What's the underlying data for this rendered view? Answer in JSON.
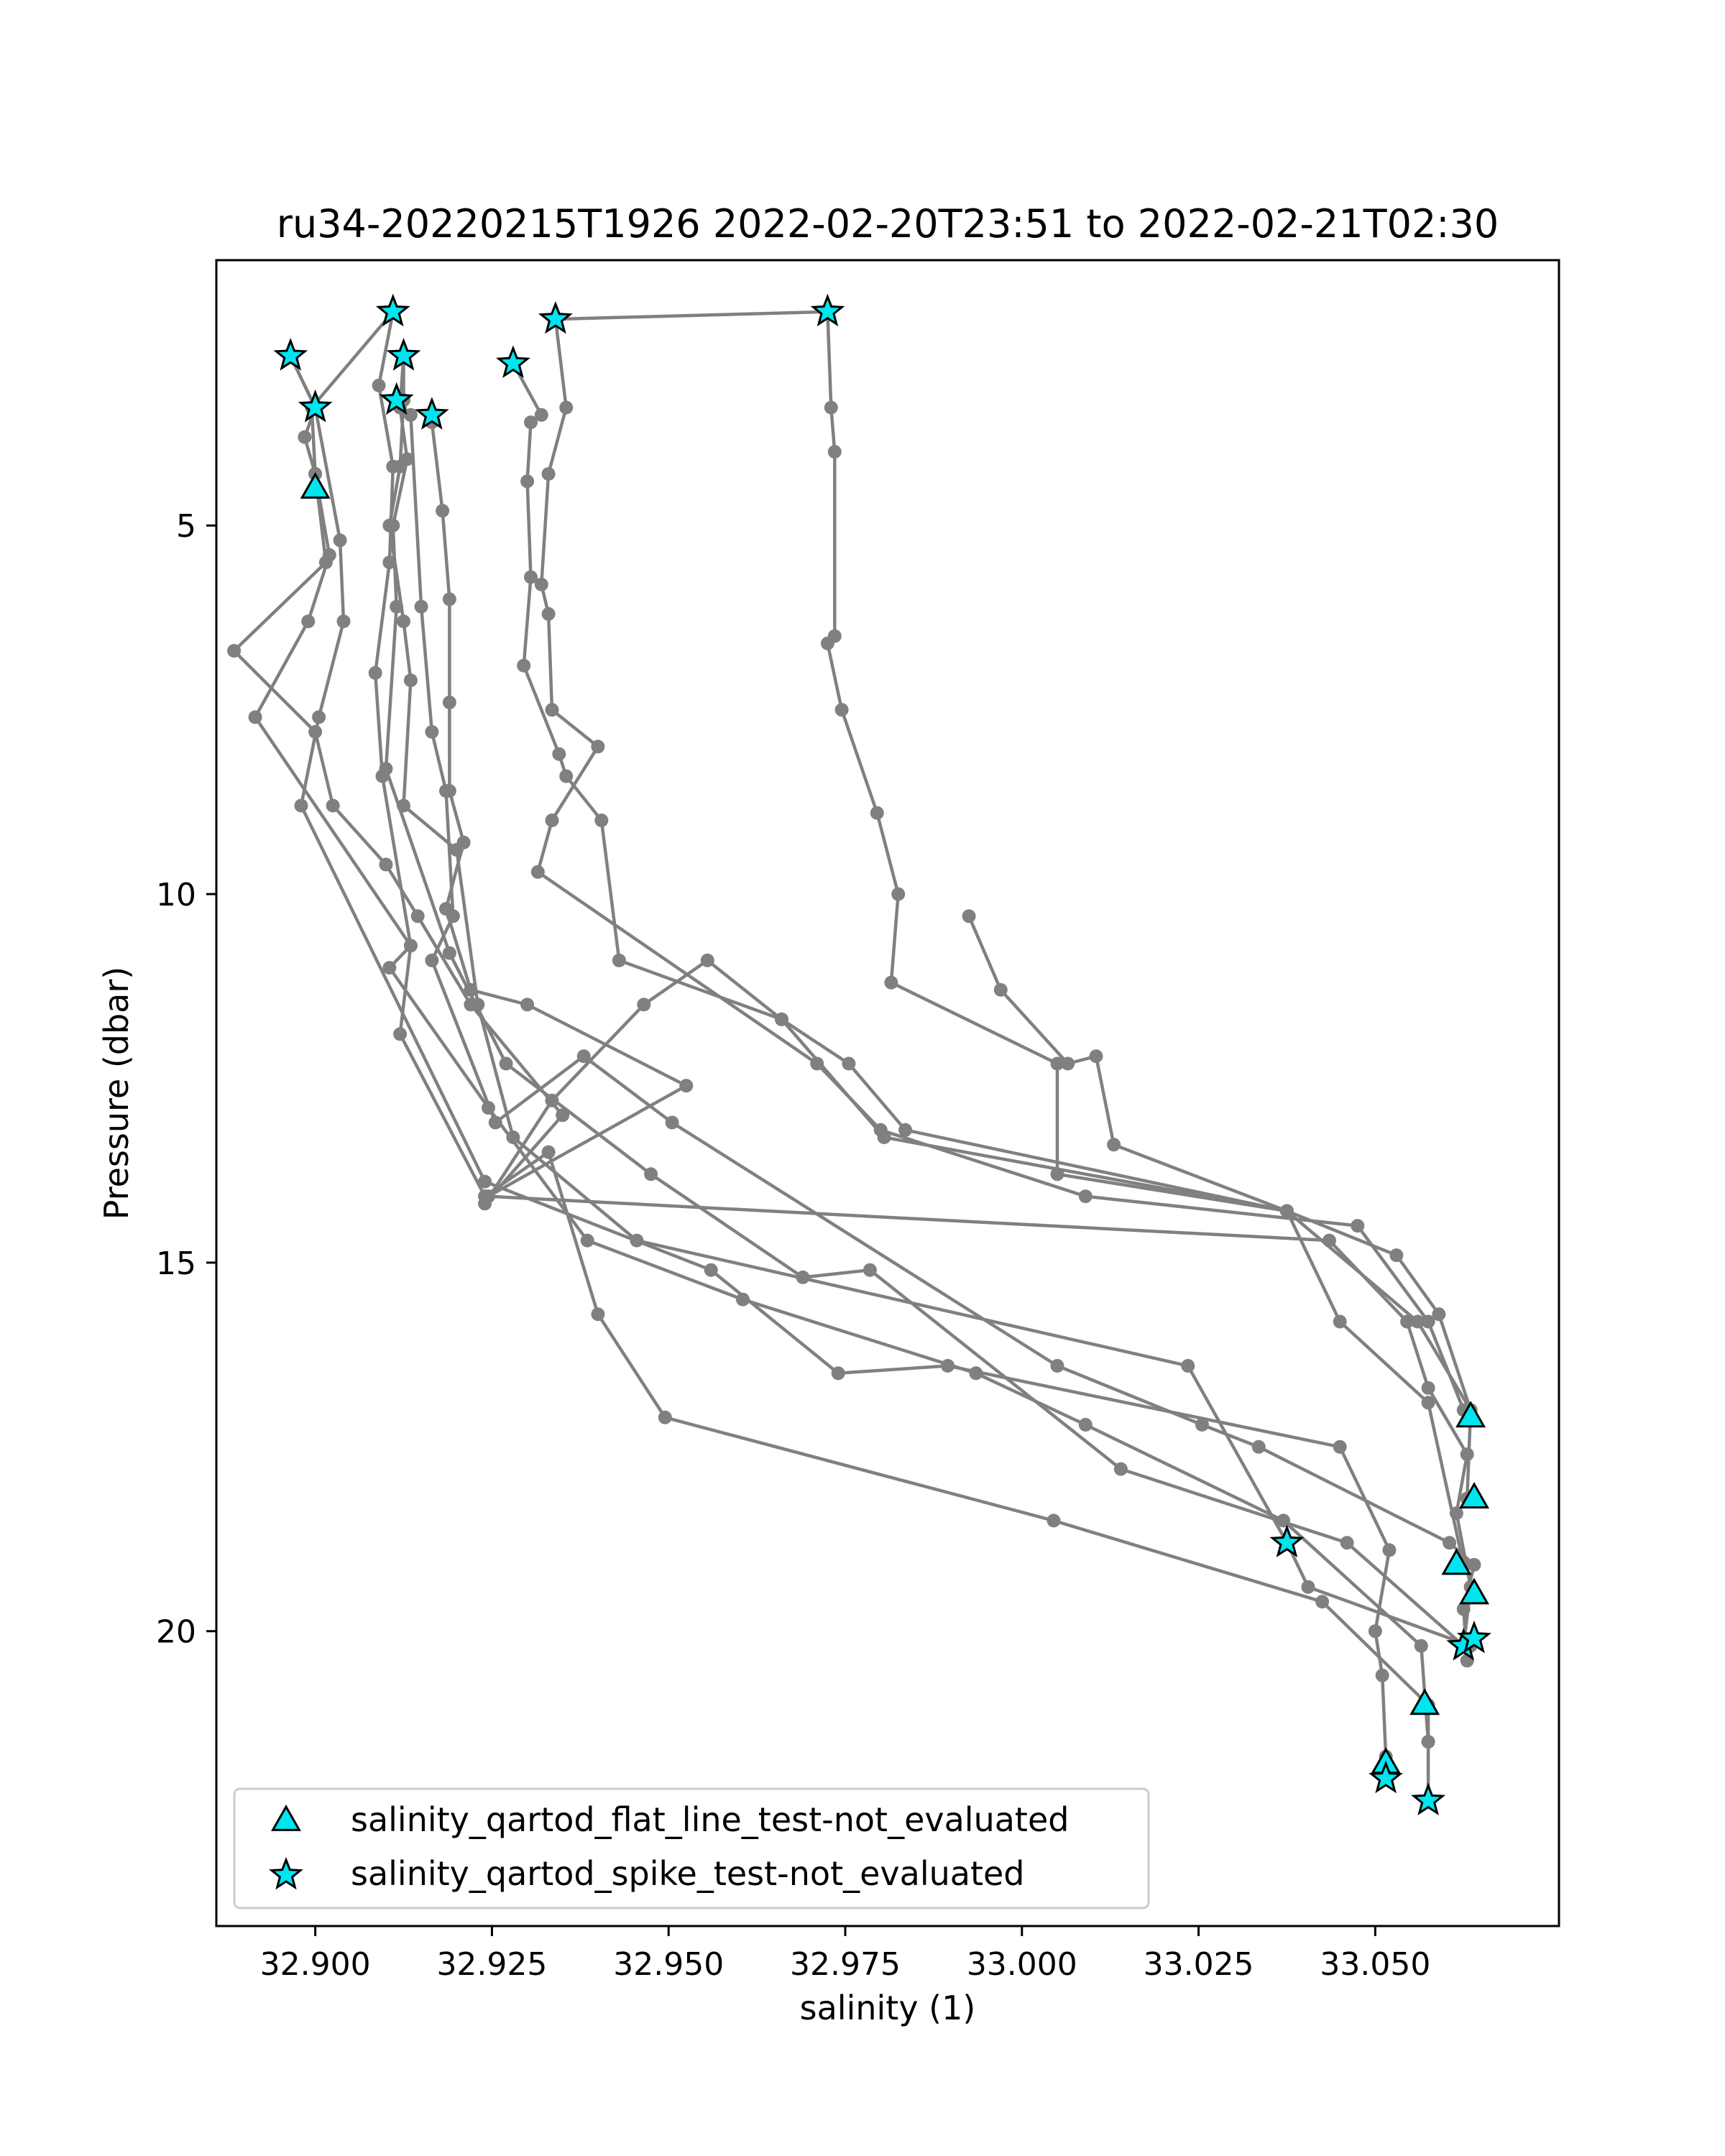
{
  "chart_data": {
    "type": "scatter",
    "title": "ru34-20220215T1926 2022-02-20T23:51 to 2022-02-21T02:30",
    "xlabel": "salinity (1)",
    "ylabel": "Pressure (dbar)",
    "xlim": [
      32.886,
      33.076
    ],
    "ylim": [
      24.0,
      1.4
    ],
    "y_inverted": true,
    "x_ticks": [
      "32.900",
      "32.925",
      "32.950",
      "32.975",
      "33.000",
      "33.025",
      "33.050"
    ],
    "x_tick_values": [
      32.9,
      32.925,
      32.95,
      32.975,
      33.0,
      33.025,
      33.05
    ],
    "y_ticks": [
      "5",
      "10",
      "15",
      "20"
    ],
    "y_tick_values": [
      5,
      10,
      15,
      20
    ],
    "grid": false,
    "legend_position": "lower-left",
    "colors": {
      "profile": "#808080",
      "marker_fill": "#00e5ee",
      "marker_edge": "#000000"
    },
    "series": [
      {
        "points": [
          [
            32.8965,
            2.7
          ],
          [
            32.9,
            3.4
          ],
          [
            32.8985,
            3.8
          ],
          [
            32.9,
            4.3
          ],
          [
            32.9015,
            5.5
          ],
          [
            32.8885,
            6.7
          ],
          [
            32.9,
            7.8
          ],
          [
            32.9025,
            8.8
          ],
          [
            32.91,
            9.6
          ],
          [
            32.9145,
            10.3
          ],
          [
            32.922,
            11.5
          ],
          [
            32.935,
            13.0
          ],
          [
            32.924,
            14.2
          ],
          [
            32.9335,
            12.8
          ],
          [
            32.9465,
            11.5
          ],
          [
            32.9555,
            10.9
          ],
          [
            32.966,
            11.7
          ],
          [
            32.9755,
            12.3
          ],
          [
            32.9835,
            13.2
          ],
          [
            33.0375,
            14.3
          ],
          [
            33.053,
            14.9
          ],
          [
            33.059,
            15.7
          ],
          [
            33.0635,
            17.0
          ],
          [
            33.063,
            18.2
          ]
        ]
      },
      {
        "points": [
          [
            32.8965,
            2.7
          ],
          [
            32.9,
            3.4
          ],
          [
            32.9035,
            5.2
          ],
          [
            32.904,
            6.3
          ],
          [
            32.9005,
            7.6
          ],
          [
            32.898,
            8.8
          ],
          [
            32.924,
            13.9
          ],
          [
            32.956,
            15.1
          ],
          [
            32.974,
            16.5
          ],
          [
            32.9895,
            16.4
          ],
          [
            33.045,
            17.5
          ],
          [
            33.052,
            18.9
          ],
          [
            33.05,
            20.0
          ],
          [
            33.051,
            20.6
          ],
          [
            33.0515,
            21.7
          ],
          [
            33.0515,
            22.0
          ]
        ]
      },
      {
        "points": [
          [
            32.911,
            2.1
          ],
          [
            32.8995,
            3.4
          ],
          [
            32.9,
            4.3
          ],
          [
            32.902,
            5.4
          ],
          [
            32.899,
            6.3
          ],
          [
            32.8915,
            7.6
          ],
          [
            32.9135,
            10.7
          ],
          [
            32.912,
            11.9
          ],
          [
            32.924,
            14.1
          ],
          [
            32.933,
            13.5
          ],
          [
            32.94,
            15.7
          ],
          [
            32.9495,
            17.1
          ],
          [
            33.0045,
            18.5
          ],
          [
            33.0425,
            19.6
          ],
          [
            33.0575,
            21.0
          ],
          [
            33.0575,
            21.5
          ],
          [
            33.0575,
            22.3
          ]
        ]
      },
      {
        "points": [
          [
            32.911,
            2.1
          ],
          [
            32.909,
            3.1
          ],
          [
            32.911,
            4.2
          ],
          [
            32.9105,
            5.5
          ],
          [
            32.9085,
            7.0
          ],
          [
            32.9095,
            8.4
          ],
          [
            32.9135,
            10.7
          ],
          [
            32.9105,
            11.0
          ],
          [
            32.9245,
            12.9
          ],
          [
            32.9385,
            14.7
          ],
          [
            32.9605,
            15.5
          ],
          [
            32.9935,
            16.5
          ],
          [
            33.009,
            17.2
          ],
          [
            33.037,
            18.5
          ],
          [
            33.0565,
            20.2
          ],
          [
            33.0575,
            21.5
          ]
        ]
      },
      {
        "points": [
          [
            32.9125,
            2.7
          ],
          [
            32.912,
            3.4
          ],
          [
            32.913,
            4.1
          ],
          [
            32.911,
            5.0
          ],
          [
            32.9115,
            6.1
          ],
          [
            32.91,
            8.3
          ],
          [
            32.919,
            10.8
          ],
          [
            32.927,
            12.3
          ],
          [
            32.9475,
            13.8
          ],
          [
            32.969,
            15.2
          ],
          [
            32.9785,
            15.1
          ],
          [
            33.014,
            17.8
          ],
          [
            33.046,
            18.8
          ],
          [
            33.0625,
            20.2
          ]
        ]
      },
      {
        "points": [
          [
            32.9125,
            2.7
          ],
          [
            32.9125,
            3.3
          ],
          [
            32.912,
            4.2
          ],
          [
            32.9105,
            5.0
          ],
          [
            32.9125,
            6.3
          ],
          [
            32.9135,
            7.1
          ],
          [
            32.9125,
            8.8
          ],
          [
            32.92,
            9.4
          ],
          [
            32.923,
            11.5
          ],
          [
            32.928,
            13.3
          ],
          [
            32.9455,
            14.7
          ],
          [
            33.0235,
            16.4
          ],
          [
            33.0375,
            18.8
          ],
          [
            33.0405,
            19.4
          ],
          [
            33.0635,
            20.2
          ]
        ]
      },
      {
        "points": [
          [
            32.9115,
            3.3
          ],
          [
            32.9135,
            3.5
          ],
          [
            32.915,
            6.1
          ],
          [
            32.9165,
            7.8
          ],
          [
            32.9185,
            8.6
          ],
          [
            32.9195,
            10.3
          ],
          [
            32.9165,
            10.9
          ],
          [
            32.9255,
            13.1
          ],
          [
            32.938,
            12.2
          ],
          [
            32.9505,
            13.1
          ],
          [
            33.005,
            16.4
          ],
          [
            33.0255,
            17.2
          ],
          [
            33.0335,
            17.5
          ],
          [
            33.0605,
            18.8
          ],
          [
            33.064,
            19.1
          ],
          [
            33.0625,
            19.7
          ],
          [
            33.063,
            20.4
          ]
        ]
      },
      {
        "points": [
          [
            32.9165,
            3.6
          ],
          [
            32.918,
            4.8
          ],
          [
            32.919,
            6.0
          ],
          [
            32.919,
            7.4
          ],
          [
            32.919,
            8.6
          ],
          [
            32.921,
            9.3
          ],
          [
            32.9185,
            10.2
          ],
          [
            32.922,
            11.3
          ],
          [
            32.93,
            11.5
          ],
          [
            32.9525,
            12.6
          ],
          [
            32.9245,
            14.1
          ],
          [
            33.0435,
            14.7
          ],
          [
            33.0545,
            15.8
          ],
          [
            33.0575,
            16.7
          ],
          [
            33.063,
            17.6
          ],
          [
            33.0615,
            18.4
          ],
          [
            33.0635,
            19.4
          ],
          [
            33.0625,
            20.2
          ]
        ]
      },
      {
        "points": [
          [
            32.928,
            2.8
          ],
          [
            32.932,
            3.5
          ],
          [
            32.9305,
            3.6
          ],
          [
            32.93,
            4.4
          ],
          [
            32.9305,
            5.7
          ],
          [
            32.9295,
            6.9
          ],
          [
            32.9345,
            8.1
          ],
          [
            32.9355,
            8.4
          ],
          [
            32.9405,
            9.0
          ],
          [
            32.943,
            10.9
          ],
          [
            32.966,
            11.7
          ],
          [
            32.9805,
            13.3
          ],
          [
            33.0375,
            14.3
          ],
          [
            33.045,
            15.8
          ],
          [
            33.0575,
            16.9
          ],
          [
            33.0625,
            19.1
          ]
        ]
      },
      {
        "points": [
          [
            32.934,
            2.2
          ],
          [
            32.9355,
            3.4
          ],
          [
            32.933,
            4.3
          ],
          [
            32.932,
            5.8
          ],
          [
            32.933,
            6.2
          ],
          [
            32.9335,
            7.5
          ],
          [
            32.94,
            8.0
          ],
          [
            32.9335,
            9.0
          ],
          [
            32.9315,
            9.7
          ],
          [
            32.971,
            12.3
          ],
          [
            32.98,
            13.2
          ],
          [
            33.009,
            14.1
          ],
          [
            33.0475,
            14.5
          ],
          [
            33.0575,
            15.8
          ],
          [
            33.0625,
            17.0
          ]
        ]
      },
      {
        "points": [
          [
            32.934,
            2.2
          ],
          [
            32.9725,
            2.1
          ],
          [
            32.973,
            3.4
          ],
          [
            32.9735,
            4.0
          ],
          [
            32.9735,
            6.5
          ],
          [
            32.9725,
            6.6
          ],
          [
            32.9745,
            7.5
          ],
          [
            32.9795,
            8.9
          ],
          [
            32.9825,
            10.0
          ],
          [
            32.9815,
            11.2
          ],
          [
            33.005,
            12.3
          ],
          [
            33.005,
            13.8
          ],
          [
            33.0375,
            14.3
          ],
          [
            33.056,
            15.8
          ],
          [
            33.0635,
            17.0
          ]
        ]
      },
      {
        "points": [
          [
            32.9925,
            10.3
          ],
          [
            32.997,
            11.3
          ],
          [
            33.0065,
            12.3
          ],
          [
            33.0105,
            12.2
          ],
          [
            33.013,
            13.4
          ],
          [
            33.0375,
            14.3
          ]
        ]
      }
    ],
    "markers": [
      {
        "name": "salinity_qartod_flat_line_test-not_evaluated",
        "shape": "triangle",
        "points": [
          [
            32.9,
            4.5
          ],
          [
            33.0635,
            17.1
          ],
          [
            33.064,
            18.2
          ],
          [
            33.0615,
            19.1
          ],
          [
            33.064,
            19.5
          ],
          [
            33.057,
            21.0
          ],
          [
            33.0515,
            21.8
          ]
        ]
      },
      {
        "name": "salinity_qartod_spike_test-not_evaluated",
        "shape": "star",
        "points": [
          [
            32.8965,
            2.7
          ],
          [
            32.9,
            3.4
          ],
          [
            32.911,
            2.1
          ],
          [
            32.9125,
            2.7
          ],
          [
            32.9115,
            3.3
          ],
          [
            32.9165,
            3.5
          ],
          [
            32.928,
            2.8
          ],
          [
            32.934,
            2.2
          ],
          [
            32.9725,
            2.1
          ],
          [
            33.0375,
            18.8
          ],
          [
            33.0515,
            22.0
          ],
          [
            33.0575,
            22.3
          ],
          [
            33.0625,
            20.2
          ],
          [
            33.064,
            20.1
          ]
        ]
      }
    ],
    "legend": [
      "salinity_qartod_flat_line_test-not_evaluated",
      "salinity_qartod_spike_test-not_evaluated"
    ]
  }
}
